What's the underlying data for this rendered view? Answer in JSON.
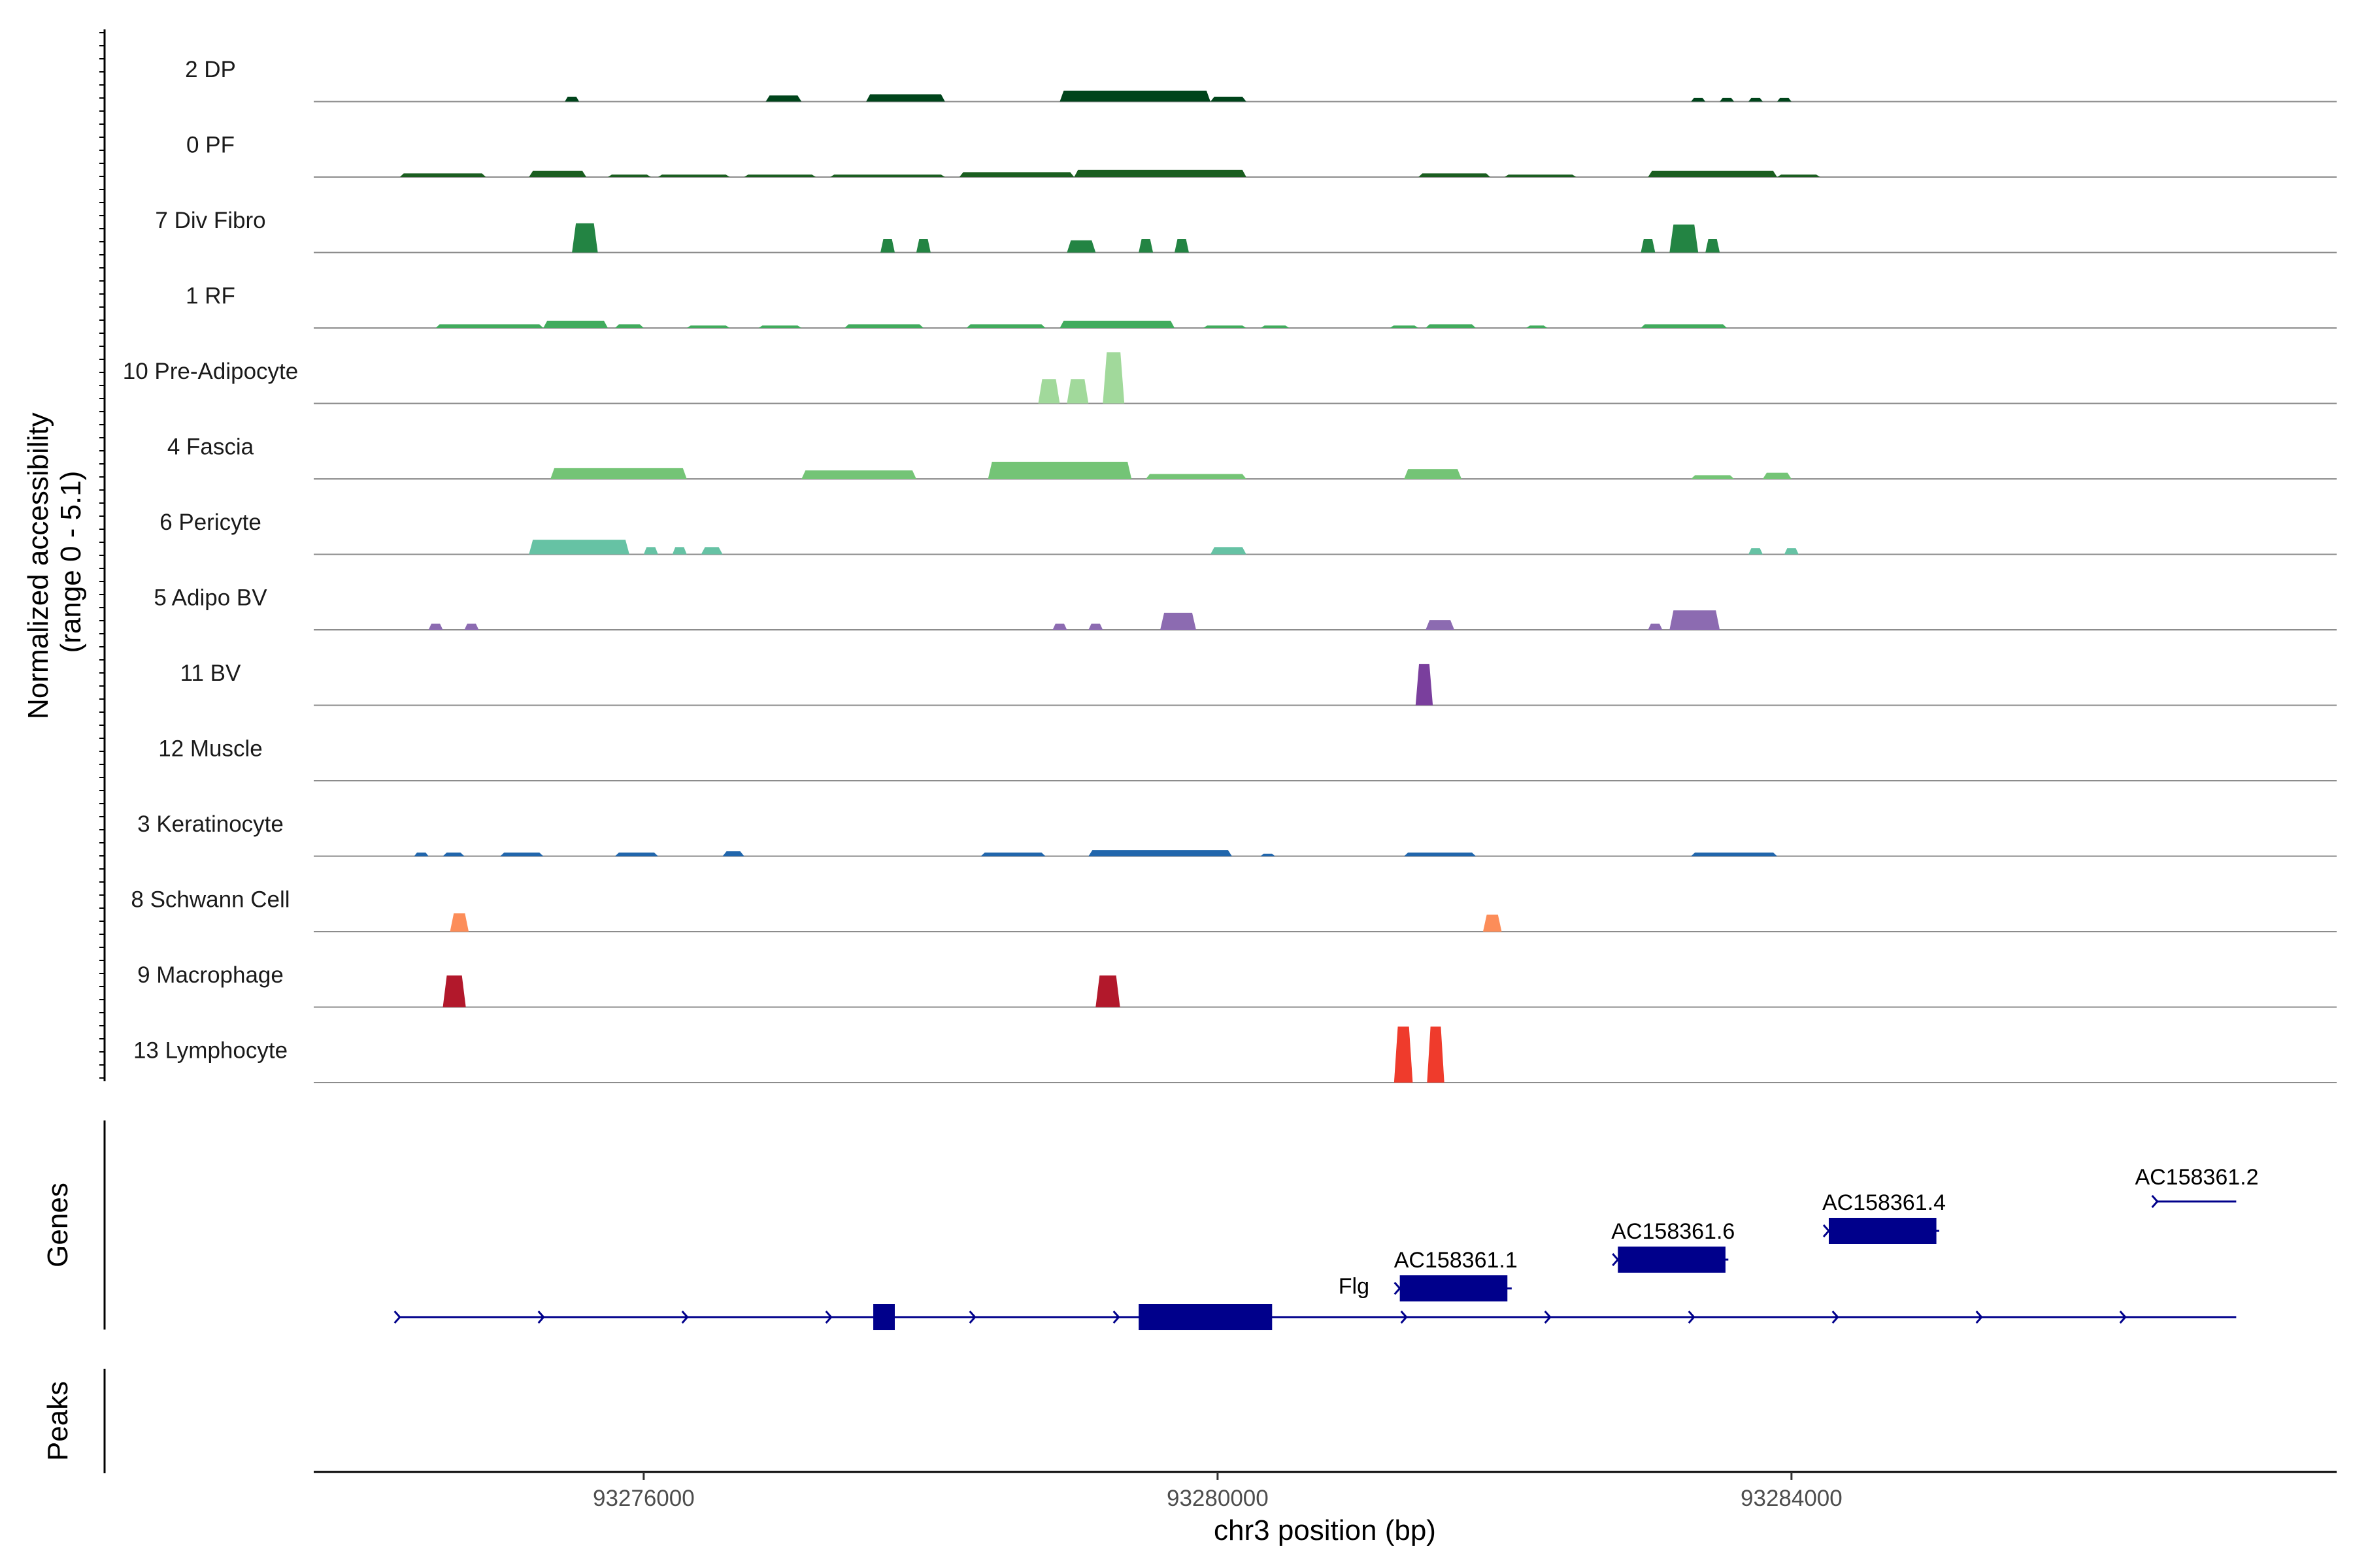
{
  "chart_data": [
    {
      "type": "area",
      "ylabel": "Normalized accessibility\n(range 0 - 5.1)",
      "ylim": [
        0,
        5.1
      ],
      "xlim": [
        93273700,
        93287800
      ],
      "tracks": [
        {
          "name": "2 DP",
          "color": "#00441b",
          "peaks": [
            [
              93275450,
              93275550,
              0.4
            ],
            [
              93276850,
              93277100,
              0.5
            ],
            [
              93277550,
              93278100,
              0.6
            ],
            [
              93278900,
              93279950,
              0.9
            ],
            [
              93279950,
              93280200,
              0.4
            ],
            [
              93283300,
              93283400,
              0.3
            ],
            [
              93283500,
              93283600,
              0.3
            ],
            [
              93283700,
              93283800,
              0.3
            ],
            [
              93283900,
              93284000,
              0.3
            ]
          ]
        },
        {
          "name": "0 PF",
          "color": "#1b5e20",
          "peaks": [
            [
              93274300,
              93274900,
              0.3
            ],
            [
              93275200,
              93275600,
              0.5
            ],
            [
              93275750,
              93276050,
              0.2
            ],
            [
              93276100,
              93276600,
              0.2
            ],
            [
              93276700,
              93277200,
              0.2
            ],
            [
              93277300,
              93278100,
              0.2
            ],
            [
              93278200,
              93279000,
              0.4
            ],
            [
              93279000,
              93280200,
              0.6
            ],
            [
              93281400,
              93281900,
              0.3
            ],
            [
              93282000,
              93282500,
              0.2
            ],
            [
              93283000,
              93283900,
              0.5
            ],
            [
              93283900,
              93284200,
              0.2
            ]
          ]
        },
        {
          "name": "7 Div Fibro",
          "color": "#238443",
          "peaks": [
            [
              93275500,
              93275680,
              2.4
            ],
            [
              93277650,
              93277750,
              1.1
            ],
            [
              93277900,
              93278000,
              1.1
            ],
            [
              93278950,
              93279150,
              1.0
            ],
            [
              93279450,
              93279550,
              1.1
            ],
            [
              93279700,
              93279800,
              1.1
            ],
            [
              93282950,
              93283050,
              1.1
            ],
            [
              93283150,
              93283350,
              2.3
            ],
            [
              93283400,
              93283500,
              1.1
            ]
          ]
        },
        {
          "name": "1 RF",
          "color": "#41ab5d",
          "peaks": [
            [
              93274550,
              93275300,
              0.3
            ],
            [
              93275300,
              93275750,
              0.6
            ],
            [
              93275800,
              93276000,
              0.3
            ],
            [
              93276300,
              93276600,
              0.2
            ],
            [
              93276800,
              93277100,
              0.2
            ],
            [
              93277400,
              93277950,
              0.3
            ],
            [
              93278250,
              93278800,
              0.3
            ],
            [
              93278900,
              93279700,
              0.6
            ],
            [
              93279900,
              93280200,
              0.2
            ],
            [
              93280300,
              93280500,
              0.2
            ],
            [
              93281200,
              93281400,
              0.2
            ],
            [
              93281450,
              93281800,
              0.3
            ],
            [
              93282150,
              93282300,
              0.2
            ],
            [
              93282950,
              93283550,
              0.3
            ]
          ]
        },
        {
          "name": "10 Pre-Adipocyte",
          "color": "#a1d99b",
          "peaks": [
            [
              93278750,
              93278900,
              2.0
            ],
            [
              93278950,
              93279100,
              2.0
            ],
            [
              93279200,
              93279350,
              4.2
            ]
          ]
        },
        {
          "name": "4 Fascia",
          "color": "#74c476",
          "peaks": [
            [
              93275350,
              93276300,
              0.9
            ],
            [
              93277100,
              93277900,
              0.7
            ],
            [
              93278400,
              93279400,
              1.4
            ],
            [
              93279500,
              93280200,
              0.4
            ],
            [
              93281300,
              93281700,
              0.8
            ],
            [
              93283300,
              93283600,
              0.3
            ],
            [
              93283800,
              93284000,
              0.5
            ]
          ]
        },
        {
          "name": "6 Pericyte",
          "color": "#66c2a4",
          "peaks": [
            [
              93275200,
              93275900,
              1.2
            ],
            [
              93276000,
              93276100,
              0.6
            ],
            [
              93276200,
              93276300,
              0.6
            ],
            [
              93276400,
              93276550,
              0.6
            ],
            [
              93279950,
              93280200,
              0.6
            ],
            [
              93283700,
              93283800,
              0.5
            ],
            [
              93283950,
              93284050,
              0.5
            ]
          ]
        },
        {
          "name": "5 Adipo BV",
          "color": "#8c6bb1",
          "peaks": [
            [
              93274500,
              93274600,
              0.5
            ],
            [
              93274750,
              93274850,
              0.5
            ],
            [
              93278850,
              93278950,
              0.5
            ],
            [
              93279100,
              93279200,
              0.5
            ],
            [
              93279600,
              93279850,
              1.4
            ],
            [
              93281450,
              93281650,
              0.8
            ],
            [
              93283000,
              93283100,
              0.5
            ],
            [
              93283150,
              93283500,
              1.6
            ]
          ]
        },
        {
          "name": "11 BV",
          "color": "#7a3f9d",
          "peaks": [
            [
              93281380,
              93281500,
              3.4
            ]
          ]
        },
        {
          "name": "12 Muscle",
          "color": "#888888",
          "peaks": []
        },
        {
          "name": "3 Keratinocyte",
          "color": "#2166ac",
          "peaks": [
            [
              93274400,
              93274500,
              0.3
            ],
            [
              93274600,
              93274750,
              0.3
            ],
            [
              93275000,
              93275300,
              0.3
            ],
            [
              93275800,
              93276100,
              0.3
            ],
            [
              93276550,
              93276700,
              0.4
            ],
            [
              93278350,
              93278800,
              0.3
            ],
            [
              93279100,
              93280100,
              0.5
            ],
            [
              93280300,
              93280400,
              0.2
            ],
            [
              93281300,
              93281800,
              0.3
            ],
            [
              93283300,
              93283900,
              0.3
            ]
          ]
        },
        {
          "name": "8 Schwann Cell",
          "color": "#fc8d59",
          "peaks": [
            [
              93274650,
              93274780,
              1.5
            ],
            [
              93281850,
              93281980,
              1.4
            ]
          ]
        },
        {
          "name": "9 Macrophage",
          "color": "#b2182b",
          "peaks": [
            [
              93274600,
              93274760,
              2.6
            ],
            [
              93279150,
              93279320,
              2.6
            ]
          ]
        },
        {
          "name": "13 Lymphocyte",
          "color": "#ef3b2c",
          "peaks": [
            [
              93281230,
              93281360,
              4.6
            ],
            [
              93281460,
              93281580,
              4.6
            ]
          ]
        }
      ]
    },
    {
      "type": "gene-track",
      "ylabel": "Genes",
      "genes": [
        {
          "name": "Flg",
          "start": 93274300,
          "end": 93287100,
          "strand": "+",
          "exons": [
            [
              93277600,
              93277750
            ],
            [
              93279450,
              93280380
            ]
          ]
        },
        {
          "name": "AC158361.1",
          "start": 93281270,
          "end": 93282050,
          "strand": "+",
          "exons": [
            [
              93281270,
              93282020
            ]
          ]
        },
        {
          "name": "AC158361.6",
          "start": 93282790,
          "end": 93283560,
          "strand": "+",
          "exons": [
            [
              93282790,
              93283540
            ]
          ]
        },
        {
          "name": "AC158361.4",
          "start": 93284260,
          "end": 93285030,
          "strand": "+",
          "exons": [
            [
              93284260,
              93285010
            ]
          ]
        },
        {
          "name": "AC158361.2",
          "start": 93286550,
          "end": 93287100,
          "strand": "+",
          "exons": []
        }
      ]
    },
    {
      "type": "peak-track",
      "ylabel": "Peaks",
      "peaks": []
    },
    {
      "type": "axis",
      "xlabel": "chr3 position (bp)",
      "ticks": [
        93276000,
        93280000,
        93284000
      ]
    }
  ]
}
